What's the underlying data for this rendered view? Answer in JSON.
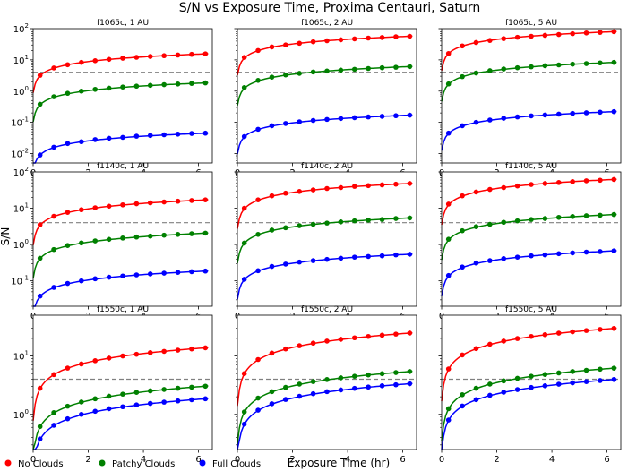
{
  "figure": {
    "title": "S/N vs Exposure Time, Proxima Centauri, Saturn",
    "xlabel": "Exposure Time (hr)",
    "ylabel": "S/N"
  },
  "legend": {
    "placement": "bottom-left",
    "entries": [
      {
        "label": "No Clouds",
        "color": "#ff0000"
      },
      {
        "label": "Patchy Clouds",
        "color": "#008000"
      },
      {
        "label": "Full Clouds",
        "color": "#0000ff"
      }
    ]
  },
  "chart_data": [
    {
      "type": "line",
      "title": "f1065c, 1 AU",
      "yscale": "log",
      "ylim": [
        0.005,
        100
      ],
      "xlim": [
        0,
        6.5
      ],
      "threshold": 4,
      "x": [
        0.25,
        0.75,
        1.25,
        1.75,
        2.25,
        2.75,
        3.25,
        3.75,
        4.25,
        4.75,
        5.25,
        5.75,
        6.25
      ],
      "xticks": [
        0,
        2,
        4,
        6
      ],
      "yticks": [
        0.01,
        0.1,
        1,
        10,
        100
      ],
      "ytick_labels": [
        "10^-2",
        "10^-1",
        "10^0",
        "10^1",
        "10^2"
      ],
      "series": [
        {
          "name": "No Clouds",
          "color": "#ff0000",
          "values": [
            3.2,
            5.5,
            7.0,
            8.3,
            9.4,
            10.4,
            11.3,
            12.1,
            12.9,
            13.6,
            14.3,
            15.0,
            15.6
          ]
        },
        {
          "name": "Patchy Clouds",
          "color": "#008000",
          "values": [
            0.38,
            0.66,
            0.85,
            1.0,
            1.14,
            1.25,
            1.35,
            1.44,
            1.53,
            1.61,
            1.69,
            1.76,
            1.83
          ]
        },
        {
          "name": "Full Clouds",
          "color": "#0000ff",
          "values": [
            0.009,
            0.016,
            0.021,
            0.024,
            0.028,
            0.031,
            0.033,
            0.036,
            0.038,
            0.04,
            0.042,
            0.044,
            0.045
          ]
        }
      ]
    },
    {
      "type": "line",
      "title": "f1065c, 2 AU",
      "yscale": "log",
      "ylim": [
        0.005,
        100
      ],
      "xlim": [
        0,
        6.5
      ],
      "threshold": 4,
      "x": [
        0.25,
        0.75,
        1.25,
        1.75,
        2.25,
        2.75,
        3.25,
        3.75,
        4.25,
        4.75,
        5.25,
        5.75,
        6.25
      ],
      "xticks": [
        0,
        2,
        4,
        6
      ],
      "yticks": [
        0.01,
        0.1,
        1,
        10,
        100
      ],
      "ytick_labels": [
        "",
        "",
        "",
        "",
        ""
      ],
      "series": [
        {
          "name": "No Clouds",
          "color": "#ff0000",
          "values": [
            12,
            20,
            26,
            30,
            34,
            38,
            41,
            44,
            47,
            50,
            52,
            55,
            57
          ]
        },
        {
          "name": "Patchy Clouds",
          "color": "#008000",
          "values": [
            1.3,
            2.2,
            2.8,
            3.3,
            3.7,
            4.1,
            4.4,
            4.7,
            5.0,
            5.3,
            5.6,
            5.8,
            6.1
          ]
        },
        {
          "name": "Full Clouds",
          "color": "#0000ff",
          "values": [
            0.035,
            0.06,
            0.078,
            0.092,
            0.104,
            0.115,
            0.124,
            0.133,
            0.141,
            0.149,
            0.156,
            0.163,
            0.17
          ]
        }
      ]
    },
    {
      "type": "line",
      "title": "f1065c, 5 AU",
      "yscale": "log",
      "ylim": [
        0.005,
        100
      ],
      "xlim": [
        0,
        6.5
      ],
      "threshold": 4,
      "x": [
        0.25,
        0.75,
        1.25,
        1.75,
        2.25,
        2.75,
        3.25,
        3.75,
        4.25,
        4.75,
        5.25,
        5.75,
        6.25
      ],
      "xticks": [
        0,
        2,
        4,
        6
      ],
      "yticks": [
        0.01,
        0.1,
        1,
        10,
        100
      ],
      "ytick_labels": [
        "",
        "",
        "",
        "",
        ""
      ],
      "series": [
        {
          "name": "No Clouds",
          "color": "#ff0000",
          "values": [
            16,
            28,
            36,
            42,
            48,
            53,
            57,
            61,
            65,
            69,
            73,
            76,
            80
          ]
        },
        {
          "name": "Patchy Clouds",
          "color": "#008000",
          "values": [
            1.7,
            2.9,
            3.8,
            4.5,
            5.1,
            5.6,
            6.0,
            6.5,
            6.9,
            7.3,
            7.6,
            8.0,
            8.3
          ]
        },
        {
          "name": "Full Clouds",
          "color": "#0000ff",
          "values": [
            0.045,
            0.078,
            0.1,
            0.119,
            0.135,
            0.149,
            0.161,
            0.172,
            0.183,
            0.193,
            0.202,
            0.211,
            0.22
          ]
        }
      ]
    },
    {
      "type": "line",
      "title": "f1140c, 1 AU",
      "yscale": "log",
      "ylim": [
        0.02,
        100
      ],
      "xlim": [
        0,
        6.5
      ],
      "threshold": 4,
      "x": [
        0.25,
        0.75,
        1.25,
        1.75,
        2.25,
        2.75,
        3.25,
        3.75,
        4.25,
        4.75,
        5.25,
        5.75,
        6.25
      ],
      "xticks": [
        0,
        2,
        4,
        6
      ],
      "yticks": [
        0.1,
        1,
        10,
        100
      ],
      "ytick_labels": [
        "10^-1",
        "10^0",
        "10^1",
        "10^2"
      ],
      "series": [
        {
          "name": "No Clouds",
          "color": "#ff0000",
          "values": [
            3.5,
            6.0,
            7.7,
            9.1,
            10.3,
            11.4,
            12.4,
            13.3,
            14.1,
            14.9,
            15.6,
            16.3,
            17.0
          ]
        },
        {
          "name": "Patchy Clouds",
          "color": "#008000",
          "values": [
            0.42,
            0.73,
            0.94,
            1.11,
            1.26,
            1.39,
            1.51,
            1.61,
            1.71,
            1.81,
            1.9,
            1.98,
            2.06
          ]
        },
        {
          "name": "Full Clouds",
          "color": "#0000ff",
          "values": [
            0.038,
            0.066,
            0.085,
            0.1,
            0.114,
            0.126,
            0.136,
            0.146,
            0.155,
            0.163,
            0.171,
            0.179,
            0.186
          ]
        }
      ]
    },
    {
      "type": "line",
      "title": "f1140c, 2 AU",
      "yscale": "log",
      "ylim": [
        0.02,
        100
      ],
      "xlim": [
        0,
        6.5
      ],
      "threshold": 4,
      "x": [
        0.25,
        0.75,
        1.25,
        1.75,
        2.25,
        2.75,
        3.25,
        3.75,
        4.25,
        4.75,
        5.25,
        5.75,
        6.25
      ],
      "xticks": [
        0,
        2,
        4,
        6
      ],
      "yticks": [
        0.1,
        1,
        10,
        100
      ],
      "ytick_labels": [
        "",
        "",
        "",
        ""
      ],
      "series": [
        {
          "name": "No Clouds",
          "color": "#ff0000",
          "values": [
            10,
            17,
            22,
            26,
            29,
            32,
            35,
            37,
            40,
            42,
            44,
            46,
            48
          ]
        },
        {
          "name": "Patchy Clouds",
          "color": "#008000",
          "values": [
            1.1,
            1.9,
            2.5,
            2.9,
            3.3,
            3.6,
            3.9,
            4.2,
            4.5,
            4.7,
            4.9,
            5.2,
            5.4
          ]
        },
        {
          "name": "Full Clouds",
          "color": "#0000ff",
          "values": [
            0.11,
            0.19,
            0.25,
            0.29,
            0.33,
            0.36,
            0.39,
            0.42,
            0.45,
            0.47,
            0.49,
            0.52,
            0.54
          ]
        }
      ]
    },
    {
      "type": "line",
      "title": "f1140c, 5 AU",
      "yscale": "log",
      "ylim": [
        0.02,
        100
      ],
      "xlim": [
        0,
        6.5
      ],
      "threshold": 4,
      "x": [
        0.25,
        0.75,
        1.25,
        1.75,
        2.25,
        2.75,
        3.25,
        3.75,
        4.25,
        4.75,
        5.25,
        5.75,
        6.25
      ],
      "xticks": [
        0,
        2,
        4,
        6
      ],
      "yticks": [
        0.1,
        1,
        10,
        100
      ],
      "ytick_labels": [
        "",
        "",
        "",
        ""
      ],
      "series": [
        {
          "name": "No Clouds",
          "color": "#ff0000",
          "values": [
            13,
            22,
            28,
            33,
            37,
            41,
            45,
            48,
            51,
            54,
            57,
            59,
            62
          ]
        },
        {
          "name": "Patchy Clouds",
          "color": "#008000",
          "values": [
            1.4,
            2.4,
            3.1,
            3.6,
            4.1,
            4.5,
            4.9,
            5.2,
            5.6,
            5.9,
            6.2,
            6.4,
            6.7
          ]
        },
        {
          "name": "Full Clouds",
          "color": "#0000ff",
          "values": [
            0.14,
            0.24,
            0.31,
            0.36,
            0.41,
            0.45,
            0.49,
            0.52,
            0.56,
            0.59,
            0.62,
            0.64,
            0.67
          ]
        }
      ]
    },
    {
      "type": "line",
      "title": "f1550c, 1 AU",
      "yscale": "log",
      "ylim": [
        0.25,
        50
      ],
      "xlim": [
        0,
        6.5
      ],
      "threshold": 4,
      "x": [
        0.25,
        0.75,
        1.25,
        1.75,
        2.25,
        2.75,
        3.25,
        3.75,
        4.25,
        4.75,
        5.25,
        5.75,
        6.25
      ],
      "xticks": [
        0,
        2,
        4,
        6
      ],
      "yticks": [
        1,
        10
      ],
      "ytick_labels": [
        "10^0",
        "10^1"
      ],
      "series": [
        {
          "name": "No Clouds",
          "color": "#ff0000",
          "values": [
            2.8,
            4.8,
            6.2,
            7.3,
            8.3,
            9.2,
            10.0,
            10.7,
            11.4,
            12.0,
            12.6,
            13.2,
            13.8
          ]
        },
        {
          "name": "Patchy Clouds",
          "color": "#008000",
          "values": [
            0.62,
            1.07,
            1.38,
            1.63,
            1.85,
            2.05,
            2.22,
            2.38,
            2.53,
            2.67,
            2.8,
            2.92,
            3.04
          ]
        },
        {
          "name": "Full Clouds",
          "color": "#0000ff",
          "values": [
            0.38,
            0.65,
            0.84,
            1.0,
            1.13,
            1.25,
            1.35,
            1.45,
            1.54,
            1.62,
            1.7,
            1.78,
            1.85
          ]
        }
      ]
    },
    {
      "type": "line",
      "title": "f1550c, 2 AU",
      "yscale": "log",
      "ylim": [
        0.25,
        50
      ],
      "xlim": [
        0,
        6.5
      ],
      "threshold": 4,
      "x": [
        0.25,
        0.75,
        1.25,
        1.75,
        2.25,
        2.75,
        3.25,
        3.75,
        4.25,
        4.75,
        5.25,
        5.75,
        6.25
      ],
      "xticks": [
        0,
        2,
        4,
        6
      ],
      "yticks": [
        1,
        10
      ],
      "ytick_labels": [
        "",
        ""
      ],
      "series": [
        {
          "name": "No Clouds",
          "color": "#ff0000",
          "values": [
            5.0,
            8.7,
            11.2,
            13.2,
            15.0,
            16.6,
            18.0,
            19.3,
            20.5,
            21.6,
            22.7,
            23.7,
            24.7
          ]
        },
        {
          "name": "Patchy Clouds",
          "color": "#008000",
          "values": [
            1.1,
            1.9,
            2.45,
            2.9,
            3.3,
            3.65,
            3.95,
            4.23,
            4.5,
            4.75,
            4.98,
            5.2,
            5.42
          ]
        },
        {
          "name": "Full Clouds",
          "color": "#0000ff",
          "values": [
            0.68,
            1.18,
            1.52,
            1.8,
            2.04,
            2.26,
            2.45,
            2.62,
            2.79,
            2.94,
            3.09,
            3.22,
            3.35
          ]
        }
      ]
    },
    {
      "type": "line",
      "title": "f1550c, 5 AU",
      "yscale": "log",
      "ylim": [
        0.25,
        50
      ],
      "xlim": [
        0,
        6.5
      ],
      "threshold": 4,
      "x": [
        0.25,
        0.75,
        1.25,
        1.75,
        2.25,
        2.75,
        3.25,
        3.75,
        4.25,
        4.75,
        5.25,
        5.75,
        6.25
      ],
      "xticks": [
        0,
        2,
        4,
        6
      ],
      "yticks": [
        1,
        10
      ],
      "ytick_labels": [
        "",
        ""
      ],
      "series": [
        {
          "name": "No Clouds",
          "color": "#ff0000",
          "values": [
            6.0,
            10.4,
            13.4,
            15.9,
            18.0,
            19.9,
            21.6,
            23.2,
            24.6,
            26.0,
            27.3,
            28.5,
            29.7
          ]
        },
        {
          "name": "Patchy Clouds",
          "color": "#008000",
          "values": [
            1.25,
            2.17,
            2.8,
            3.3,
            3.75,
            4.15,
            4.5,
            4.83,
            5.13,
            5.42,
            5.69,
            5.94,
            6.19
          ]
        },
        {
          "name": "Full Clouds",
          "color": "#0000ff",
          "values": [
            0.8,
            1.39,
            1.79,
            2.12,
            2.4,
            2.66,
            2.89,
            3.09,
            3.29,
            3.47,
            3.64,
            3.8,
            3.96
          ]
        }
      ]
    }
  ]
}
